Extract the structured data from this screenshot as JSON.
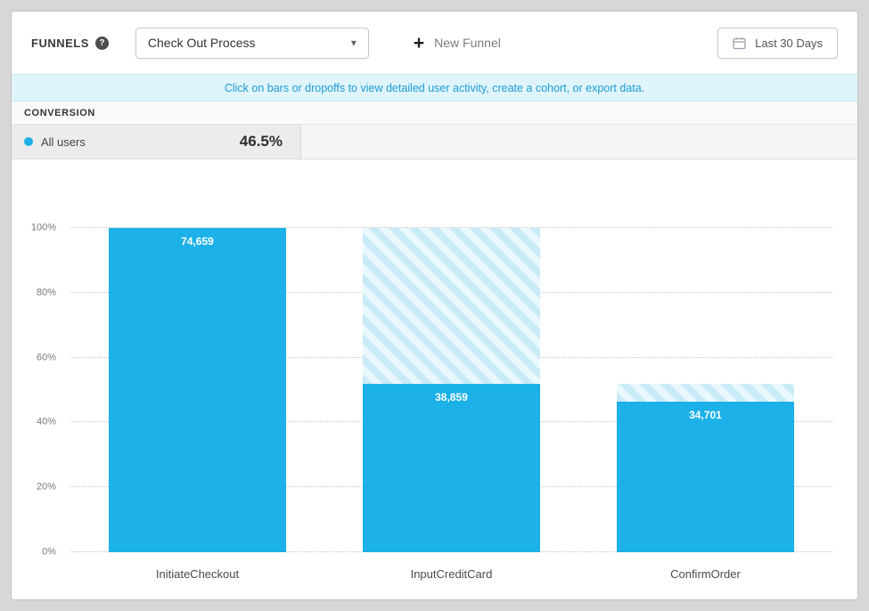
{
  "colors": {
    "accent": "#1CB1E8",
    "banner_bg": "#DFF4FB",
    "banner_text": "#1E9CD7",
    "dropoff_stripe_a": "#C9EBF8",
    "dropoff_stripe_b": "#E9F8FD"
  },
  "toolbar": {
    "funnels_label": "FUNNELS",
    "help_glyph": "?",
    "selected_funnel": "Check Out Process",
    "caret_glyph": "▾",
    "plus_glyph": "+",
    "new_funnel_label": "New Funnel",
    "date_range_label": "Last 30 Days"
  },
  "banner": {
    "text": "Click on bars or dropoffs to view detailed user activity, create a cohort, or export data."
  },
  "conversion": {
    "header": "CONVERSION",
    "series_label": "All users",
    "rate": "46.5%"
  },
  "chart_data": {
    "type": "bar",
    "title": "Check Out Process funnel",
    "categories": [
      "InitiateCheckout",
      "InputCreditCard",
      "ConfirmOrder"
    ],
    "series": [
      {
        "name": "All users",
        "values": [
          74659,
          38859,
          34701
        ]
      }
    ],
    "value_labels": [
      "74,659",
      "38,859",
      "34,701"
    ],
    "percent_of_first": [
      100,
      52.05,
      46.48
    ],
    "dropoff_overlay": "hatched segment above each bar up to the previous step's height",
    "y_ticks": [
      0,
      20,
      40,
      60,
      80,
      100
    ],
    "y_tick_suffix": "%",
    "ylim": [
      0,
      100
    ],
    "grid": "dotted-horizontal",
    "legend_position": "none",
    "overall_conversion": "46.5%"
  }
}
